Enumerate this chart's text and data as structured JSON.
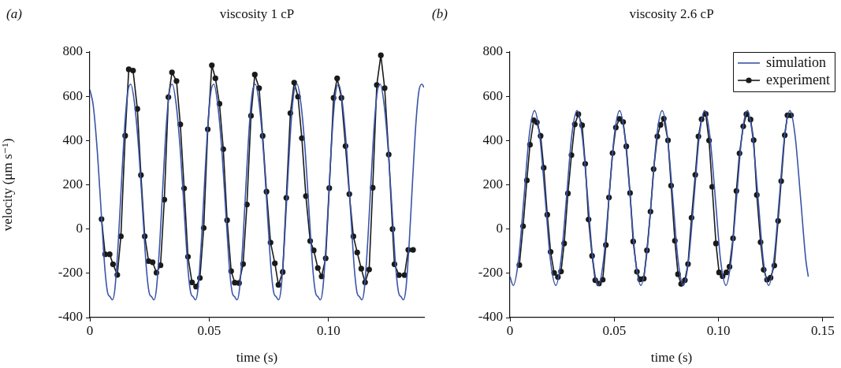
{
  "chart_data": [
    {
      "type": "line",
      "title": "viscosity 1 cP",
      "annotations": [
        "(a)"
      ],
      "xlabel": "time (s)",
      "ylabel": "velocity (μm s⁻¹)",
      "xlim": [
        0,
        0.14
      ],
      "ylim": [
        -400,
        800
      ],
      "xticks": [
        0,
        0.05,
        {
          "value": 0.1,
          "label": "0.10"
        }
      ],
      "yticks": [
        -400,
        -200,
        0,
        200,
        400,
        600,
        800
      ],
      "legend": false,
      "series": [
        {
          "color": "#3a54a8",
          "marker": "none",
          "x": [
            0,
            0.0014,
            0.0032,
            0.0049,
            0.0063,
            0.0075,
            0.0084,
            0.0095,
            0.0105,
            0.0119,
            0.0133,
            0.0147,
            0.0159,
            0.0171,
            0.0188,
            0.0206,
            0.0223,
            0.0237,
            0.0249,
            0.0258,
            0.0269,
            0.0279,
            0.0293,
            0.0307,
            0.0321,
            0.0333,
            0.0345,
            0.0362,
            0.038,
            0.0397,
            0.0411,
            0.0423,
            0.0432,
            0.0443,
            0.0453,
            0.0467,
            0.0481,
            0.0495,
            0.0507,
            0.0519,
            0.0536,
            0.0554,
            0.0571,
            0.0585,
            0.0597,
            0.0606,
            0.0617,
            0.0627,
            0.0641,
            0.0655,
            0.0669,
            0.0681,
            0.0693,
            0.071,
            0.0728,
            0.0745,
            0.0759,
            0.0771,
            0.078,
            0.0791,
            0.0801,
            0.0815,
            0.0829,
            0.0843,
            0.0855,
            0.0868,
            0.0885,
            0.0903,
            0.092,
            0.0934,
            0.0946,
            0.0955,
            0.0966,
            0.0976,
            0.099,
            0.1004,
            0.1018,
            0.103,
            0.1042,
            0.1059,
            0.1077,
            0.1094,
            0.1108,
            0.112,
            0.1129,
            0.114,
            0.115,
            0.1164,
            0.1178,
            0.1192,
            0.1204,
            0.1216,
            0.1233,
            0.1251,
            0.1268,
            0.1282,
            0.1294,
            0.1303,
            0.1314,
            0.1324,
            0.1338,
            0.1352,
            0.1366,
            0.1378,
            0.139,
            0.14
          ],
          "values": [
            630,
            560,
            340,
            50,
            -180,
            -290,
            -305,
            -320,
            -270,
            -60,
            220,
            480,
            620,
            655,
            560,
            340,
            50,
            -180,
            -290,
            -305,
            -320,
            -270,
            -60,
            220,
            480,
            620,
            655,
            560,
            340,
            50,
            -180,
            -290,
            -305,
            -320,
            -270,
            -60,
            220,
            480,
            620,
            655,
            560,
            340,
            50,
            -180,
            -290,
            -305,
            -320,
            -270,
            -60,
            220,
            480,
            620,
            655,
            560,
            340,
            50,
            -180,
            -290,
            -305,
            -320,
            -270,
            -60,
            220,
            480,
            620,
            655,
            560,
            340,
            50,
            -180,
            -290,
            -305,
            -320,
            -270,
            -60,
            220,
            480,
            620,
            655,
            560,
            340,
            50,
            -180,
            -290,
            -305,
            -320,
            -270,
            -60,
            220,
            480,
            620,
            655,
            560,
            340,
            50,
            -180,
            -290,
            -305,
            -320,
            -270,
            -60,
            220,
            480,
            620,
            655,
            640
          ]
        },
        {
          "color": "#1a1a1a",
          "marker": "circle",
          "x": [
            0.0049,
            0.0064,
            0.0083,
            0.0097,
            0.0115,
            0.013,
            0.0148,
            0.0163,
            0.0181,
            0.0199,
            0.0214,
            0.023,
            0.0246,
            0.0263,
            0.0279,
            0.0296,
            0.0312,
            0.0329,
            0.0344,
            0.0363,
            0.0379,
            0.0395,
            0.0411,
            0.0428,
            0.0445,
            0.0461,
            0.0477,
            0.0494,
            0.0511,
            0.0526,
            0.0543,
            0.0559,
            0.0575,
            0.0592,
            0.0607,
            0.0625,
            0.0642,
            0.0658,
            0.0675,
            0.0691,
            0.0709,
            0.0724,
            0.074,
            0.0757,
            0.0775,
            0.079,
            0.0808,
            0.0823,
            0.084,
            0.0856,
            0.0872,
            0.0888,
            0.0905,
            0.0923,
            0.0938,
            0.0955,
            0.0971,
            0.0988,
            0.1003,
            0.1021,
            0.1036,
            0.1054,
            0.1071,
            0.1087,
            0.1104,
            0.112,
            0.1137,
            0.1153,
            0.117,
            0.1185,
            0.1202,
            0.1219,
            0.1235,
            0.1252,
            0.1268,
            0.1276,
            0.1295,
            0.1318,
            0.1334,
            0.1354
          ],
          "values": [
            45,
            -114,
            -114,
            -159,
            -207,
            -33,
            422,
            722,
            716,
            543,
            244,
            -33,
            -145,
            -150,
            -197,
            -164,
            133,
            596,
            708,
            669,
            473,
            184,
            -125,
            -241,
            -260,
            -221,
            5,
            451,
            740,
            681,
            566,
            361,
            40,
            -190,
            -242,
            -244,
            -158,
            111,
            512,
            698,
            637,
            421,
            169,
            -61,
            -155,
            -252,
            -194,
            141,
            524,
            662,
            598,
            411,
            149,
            -54,
            -96,
            -176,
            -214,
            -132,
            185,
            593,
            681,
            593,
            375,
            158,
            -33,
            -106,
            -179,
            -241,
            -183,
            187,
            651,
            785,
            637,
            337,
            0,
            -159,
            -208,
            -208,
            -94,
            -94
          ]
        }
      ]
    },
    {
      "type": "line",
      "title": "viscosity 2.6 cP",
      "annotations": [
        "(b)"
      ],
      "xlabel": "time (s)",
      "xlim": [
        0,
        0.155
      ],
      "ylim": [
        -400,
        800
      ],
      "xticks": [
        0,
        0.05,
        {
          "value": 0.1,
          "label": "0.10"
        },
        0.15
      ],
      "yticks": [
        -400,
        -200,
        0,
        200,
        400,
        600,
        800
      ],
      "legend": "top right",
      "series": [
        {
          "name": "simulation",
          "color": "#3a54a8",
          "marker": "none",
          "x": [
            0,
            0.0016,
            0.0041,
            0.0067,
            0.0092,
            0.0118,
            0.0143,
            0.0169,
            0.0194,
            0.022,
            0.0245,
            0.0271,
            0.0296,
            0.0322,
            0.0347,
            0.0373,
            0.0398,
            0.0424,
            0.0449,
            0.0475,
            0.05,
            0.0526,
            0.0551,
            0.0577,
            0.0602,
            0.0628,
            0.0653,
            0.0679,
            0.0704,
            0.073,
            0.0755,
            0.0781,
            0.0806,
            0.0832,
            0.0857,
            0.0883,
            0.0908,
            0.0934,
            0.0959,
            0.0985,
            0.101,
            0.1036,
            0.1061,
            0.1087,
            0.1112,
            0.1139,
            0.1164,
            0.119,
            0.1215,
            0.1241,
            0.1266,
            0.1292,
            0.1317,
            0.1343,
            0.1368,
            0.1394,
            0.1419,
            0.1431
          ],
          "values": [
            -215,
            -255,
            -139,
            140,
            419,
            535,
            419,
            140,
            -139,
            -255,
            -139,
            140,
            419,
            535,
            419,
            140,
            -139,
            -255,
            -139,
            140,
            419,
            535,
            419,
            140,
            -139,
            -255,
            -139,
            140,
            419,
            535,
            419,
            140,
            -139,
            -255,
            -139,
            140,
            419,
            535,
            419,
            140,
            -139,
            -255,
            -139,
            140,
            419,
            535,
            419,
            140,
            -139,
            -255,
            -139,
            140,
            419,
            535,
            419,
            140,
            -139,
            -215
          ]
        },
        {
          "name": "experiment",
          "color": "#1a1a1a",
          "marker": "circle",
          "x": [
            0.0045,
            0.0063,
            0.0081,
            0.0096,
            0.0114,
            0.0129,
            0.0147,
            0.0162,
            0.0179,
            0.0195,
            0.0212,
            0.023,
            0.0245,
            0.026,
            0.0278,
            0.0295,
            0.0311,
            0.0328,
            0.0346,
            0.0361,
            0.0377,
            0.0394,
            0.0409,
            0.0427,
            0.0445,
            0.046,
            0.0475,
            0.0492,
            0.0508,
            0.0525,
            0.0543,
            0.0558,
            0.0576,
            0.0591,
            0.0609,
            0.0624,
            0.0642,
            0.0657,
            0.0674,
            0.0689,
            0.0707,
            0.0722,
            0.0738,
            0.0758,
            0.0773,
            0.0791,
            0.0806,
            0.0821,
            0.0839,
            0.0854,
            0.0871,
            0.0889,
            0.0904,
            0.0919,
            0.0939,
            0.0955,
            0.097,
            0.0988,
            0.1003,
            0.102,
            0.1038,
            0.1053,
            0.107,
            0.1086,
            0.1101,
            0.1119,
            0.1134,
            0.1154,
            0.1169,
            0.1184,
            0.1202,
            0.1217,
            0.1233,
            0.125,
            0.1268,
            0.1286,
            0.1301,
            0.1318,
            0.1331,
            0.1348
          ],
          "values": [
            -163,
            13,
            220,
            381,
            492,
            482,
            421,
            277,
            65,
            -103,
            -198,
            -217,
            -192,
            -65,
            161,
            334,
            473,
            519,
            469,
            295,
            43,
            -121,
            -231,
            -246,
            -229,
            -72,
            143,
            343,
            459,
            498,
            484,
            374,
            163,
            -56,
            -193,
            -227,
            -224,
            -96,
            79,
            271,
            419,
            471,
            499,
            401,
            196,
            -53,
            -204,
            -248,
            -231,
            -158,
            51,
            245,
            419,
            496,
            520,
            400,
            191,
            -65,
            -196,
            -213,
            -196,
            -170,
            -42,
            172,
            342,
            464,
            519,
            495,
            402,
            154,
            -59,
            -184,
            -229,
            -220,
            -165,
            37,
            217,
            424,
            514,
            514
          ]
        }
      ]
    }
  ]
}
